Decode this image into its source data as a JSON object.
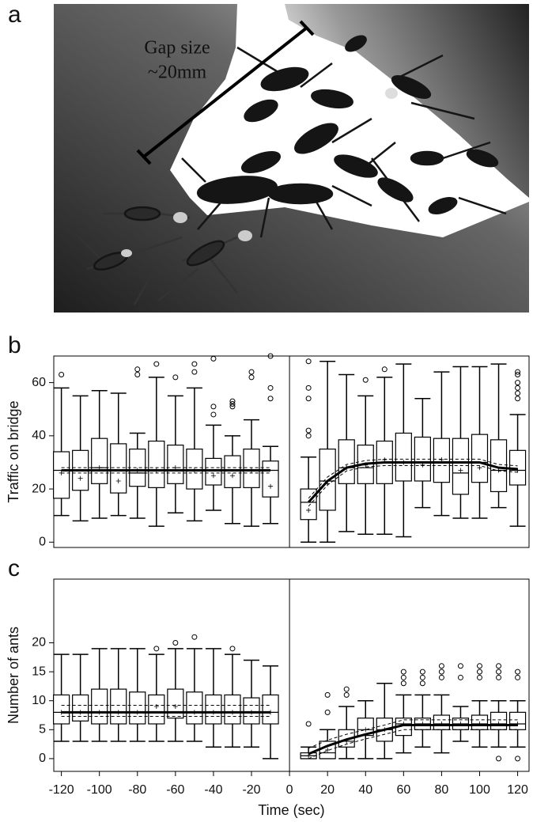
{
  "panel_a": {
    "label": "a",
    "annotation": [
      "Gap size",
      "~20mm"
    ]
  },
  "chart_data": [
    {
      "type": "box",
      "panel": "b",
      "y_label": "Traffic on bridge",
      "xlim": [
        -124,
        126
      ],
      "ylim": [
        -2,
        70
      ],
      "yticks": [
        0,
        20,
        40,
        60
      ],
      "divider": 0,
      "boxes": [
        {
          "x": -120,
          "whisker_low": 10,
          "q1": 16.5,
          "median": 27,
          "q3": 34,
          "whisker_high": 58,
          "mean": 26,
          "outliers": [
            63
          ]
        },
        {
          "x": -110,
          "whisker_low": 8,
          "q1": 19.5,
          "median": 27,
          "q3": 34.5,
          "whisker_high": 55,
          "mean": 24,
          "outliers": []
        },
        {
          "x": -100,
          "whisker_low": 9,
          "q1": 22,
          "median": 28,
          "q3": 39,
          "whisker_high": 57,
          "mean": 28,
          "outliers": []
        },
        {
          "x": -90,
          "whisker_low": 10,
          "q1": 18.5,
          "median": 27,
          "q3": 37,
          "whisker_high": 56,
          "mean": 23,
          "outliers": []
        },
        {
          "x": -80,
          "whisker_low": 9,
          "q1": 21,
          "median": 26,
          "q3": 35,
          "whisker_high": 41,
          "mean": 27,
          "outliers": [
            63,
            65
          ]
        },
        {
          "x": -70,
          "whisker_low": 6,
          "q1": 20.5,
          "median": 27,
          "q3": 38,
          "whisker_high": 62,
          "mean": 27,
          "outliers": [
            67
          ]
        },
        {
          "x": -60,
          "whisker_low": 11,
          "q1": 22,
          "median": 27,
          "q3": 36.5,
          "whisker_high": 55,
          "mean": 28,
          "outliers": [
            62
          ]
        },
        {
          "x": -50,
          "whisker_low": 8,
          "q1": 20,
          "median": 27,
          "q3": 35,
          "whisker_high": 58,
          "mean": 27,
          "outliers": [
            64,
            67
          ]
        },
        {
          "x": -40,
          "whisker_low": 12,
          "q1": 21.5,
          "median": 27,
          "q3": 31.5,
          "whisker_high": 44,
          "mean": 25,
          "outliers": [
            48,
            51,
            69
          ]
        },
        {
          "x": -30,
          "whisker_low": 7,
          "q1": 20.5,
          "median": 27,
          "q3": 32.5,
          "whisker_high": 40,
          "mean": 25,
          "outliers": [
            51,
            52,
            53
          ]
        },
        {
          "x": -20,
          "whisker_low": 6,
          "q1": 20.5,
          "median": 27,
          "q3": 35,
          "whisker_high": 46,
          "mean": 27,
          "outliers": [
            62,
            64
          ]
        },
        {
          "x": -10,
          "whisker_low": 7,
          "q1": 17,
          "median": 27,
          "q3": 30.5,
          "whisker_high": 36,
          "mean": 21,
          "outliers": [
            54,
            58,
            70
          ]
        },
        {
          "x": 10,
          "whisker_low": 0,
          "q1": 8.5,
          "median": 15,
          "q3": 20,
          "whisker_high": 32,
          "mean": 12,
          "outliers": [
            40,
            42,
            54,
            58,
            68
          ]
        },
        {
          "x": 20,
          "whisker_low": 0,
          "q1": 12,
          "median": 23,
          "q3": 35,
          "whisker_high": 68,
          "mean": 22,
          "outliers": []
        },
        {
          "x": 30,
          "whisker_low": 4,
          "q1": 22,
          "median": 28,
          "q3": 38.5,
          "whisker_high": 63,
          "mean": 28,
          "outliers": []
        },
        {
          "x": 40,
          "whisker_low": 3,
          "q1": 22,
          "median": 28,
          "q3": 36.5,
          "whisker_high": 55,
          "mean": 29,
          "outliers": [
            61
          ]
        },
        {
          "x": 50,
          "whisker_low": 3,
          "q1": 22,
          "median": 30,
          "q3": 38,
          "whisker_high": 62,
          "mean": 31,
          "outliers": [
            65
          ]
        },
        {
          "x": 60,
          "whisker_low": 2,
          "q1": 23,
          "median": 30,
          "q3": 41,
          "whisker_high": 67,
          "mean": 30,
          "outliers": []
        },
        {
          "x": 70,
          "whisker_low": 13,
          "q1": 23,
          "median": 30,
          "q3": 39.5,
          "whisker_high": 54,
          "mean": 29,
          "outliers": []
        },
        {
          "x": 80,
          "whisker_low": 10,
          "q1": 22.5,
          "median": 30,
          "q3": 39,
          "whisker_high": 64,
          "mean": 31,
          "outliers": []
        },
        {
          "x": 90,
          "whisker_low": 9,
          "q1": 18,
          "median": 26,
          "q3": 39,
          "whisker_high": 66,
          "mean": 27,
          "outliers": []
        },
        {
          "x": 100,
          "whisker_low": 9,
          "q1": 22.5,
          "median": 30,
          "q3": 40.5,
          "whisker_high": 66,
          "mean": 28,
          "outliers": []
        },
        {
          "x": 110,
          "whisker_low": 13,
          "q1": 19,
          "median": 27,
          "q3": 38.5,
          "whisker_high": 67,
          "mean": 27,
          "outliers": []
        },
        {
          "x": 120,
          "whisker_low": 6,
          "q1": 21.5,
          "median": 27,
          "q3": 34.5,
          "whisker_high": 48,
          "mean": 27,
          "outliers": [
            54,
            56,
            58,
            60,
            63,
            64
          ]
        }
      ],
      "fit": {
        "x": [
          -120,
          -10,
          0,
          10,
          20,
          30,
          40,
          50,
          60,
          70,
          80,
          90,
          100,
          110,
          120
        ],
        "center": [
          27,
          27,
          null,
          15,
          23,
          28,
          29.5,
          30,
          30,
          30,
          30,
          30,
          30,
          28,
          27.5
        ],
        "lower": [
          26,
          26,
          null,
          13.5,
          21.5,
          26.8,
          28.3,
          28.8,
          28.8,
          28.8,
          28.8,
          28.8,
          28.8,
          26.8,
          26.3
        ],
        "upper": [
          28,
          28,
          null,
          16.5,
          24.5,
          29.2,
          30.7,
          31.2,
          31.2,
          31.2,
          31.2,
          31.2,
          31.2,
          29.2,
          28.7
        ]
      }
    },
    {
      "type": "box",
      "panel": "c",
      "y_label": "Number of ants",
      "x_label": "Time (sec)",
      "xlim": [
        -124,
        126
      ],
      "ylim": [
        -2.2,
        31
      ],
      "yticks": [
        0,
        5,
        10,
        15,
        20
      ],
      "xticks": [
        -120,
        -100,
        -80,
        -60,
        -40,
        -20,
        0,
        20,
        40,
        60,
        80,
        100,
        120
      ],
      "divider": 0,
      "boxes": [
        {
          "x": -120,
          "whisker_low": 3,
          "q1": 6,
          "median": 8,
          "q3": 11,
          "whisker_high": 18,
          "mean": 8,
          "outliers": []
        },
        {
          "x": -110,
          "whisker_low": 3,
          "q1": 6.5,
          "median": 8,
          "q3": 11,
          "whisker_high": 18,
          "mean": 8,
          "outliers": []
        },
        {
          "x": -100,
          "whisker_low": 3,
          "q1": 6,
          "median": 8,
          "q3": 12,
          "whisker_high": 19,
          "mean": 8,
          "outliers": []
        },
        {
          "x": -90,
          "whisker_low": 3,
          "q1": 6,
          "median": 8,
          "q3": 12,
          "whisker_high": 19,
          "mean": 8,
          "outliers": []
        },
        {
          "x": -80,
          "whisker_low": 3,
          "q1": 6,
          "median": 8,
          "q3": 11.5,
          "whisker_high": 19,
          "mean": 8,
          "outliers": []
        },
        {
          "x": -70,
          "whisker_low": 3,
          "q1": 6,
          "median": 8,
          "q3": 11,
          "whisker_high": 18,
          "mean": 9,
          "outliers": [
            19
          ]
        },
        {
          "x": -60,
          "whisker_low": 3,
          "q1": 7,
          "median": 8,
          "q3": 12,
          "whisker_high": 19,
          "mean": 9,
          "outliers": [
            20
          ]
        },
        {
          "x": -50,
          "whisker_low": 3,
          "q1": 6,
          "median": 8,
          "q3": 11.5,
          "whisker_high": 19,
          "mean": 8,
          "outliers": [
            21
          ]
        },
        {
          "x": -40,
          "whisker_low": 2,
          "q1": 6,
          "median": 8,
          "q3": 11,
          "whisker_high": 19,
          "mean": 8,
          "outliers": []
        },
        {
          "x": -30,
          "whisker_low": 2,
          "q1": 6,
          "median": 8,
          "q3": 11,
          "whisker_high": 18,
          "mean": 8,
          "outliers": [
            19
          ]
        },
        {
          "x": -20,
          "whisker_low": 2,
          "q1": 6,
          "median": 8,
          "q3": 10.5,
          "whisker_high": 17,
          "mean": 8,
          "outliers": []
        },
        {
          "x": -10,
          "whisker_low": 0,
          "q1": 6,
          "median": 8,
          "q3": 11,
          "whisker_high": 16,
          "mean": 8,
          "outliers": []
        },
        {
          "x": 10,
          "whisker_low": 0,
          "q1": 0,
          "median": 0.5,
          "q3": 1,
          "whisker_high": 2,
          "mean": 0.5,
          "outliers": [
            6
          ]
        },
        {
          "x": 20,
          "whisker_low": 0,
          "q1": 0,
          "median": 1,
          "q3": 3,
          "whisker_high": 5,
          "mean": 1.5,
          "outliers": [
            8,
            11
          ]
        },
        {
          "x": 30,
          "whisker_low": 0,
          "q1": 2,
          "median": 3,
          "q3": 5,
          "whisker_high": 9,
          "mean": 3,
          "outliers": [
            11,
            12
          ]
        },
        {
          "x": 40,
          "whisker_low": 0,
          "q1": 4,
          "median": 5,
          "q3": 7,
          "whisker_high": 10,
          "mean": 5,
          "outliers": []
        },
        {
          "x": 50,
          "whisker_low": 0,
          "q1": 3,
          "median": 5,
          "q3": 7,
          "whisker_high": 13,
          "mean": 5,
          "outliers": []
        },
        {
          "x": 60,
          "whisker_low": 1,
          "q1": 4,
          "median": 6,
          "q3": 7,
          "whisker_high": 11,
          "mean": 6,
          "outliers": [
            13,
            14,
            15
          ]
        },
        {
          "x": 70,
          "whisker_low": 2,
          "q1": 5,
          "median": 6,
          "q3": 7,
          "whisker_high": 11,
          "mean": 6,
          "outliers": [
            13,
            14,
            15
          ]
        },
        {
          "x": 80,
          "whisker_low": 1,
          "q1": 5,
          "median": 6,
          "q3": 7.5,
          "whisker_high": 11,
          "mean": 6,
          "outliers": [
            14,
            15,
            16
          ]
        },
        {
          "x": 90,
          "whisker_low": 3,
          "q1": 5,
          "median": 6,
          "q3": 7,
          "whisker_high": 9,
          "mean": 6,
          "outliers": [
            14,
            16
          ]
        },
        {
          "x": 100,
          "whisker_low": 2,
          "q1": 5,
          "median": 6,
          "q3": 7.5,
          "whisker_high": 10,
          "mean": 6,
          "outliers": [
            14,
            15,
            16
          ]
        },
        {
          "x": 110,
          "whisker_low": 2,
          "q1": 5,
          "median": 6,
          "q3": 8,
          "whisker_high": 10,
          "mean": 6,
          "outliers": [
            0,
            14,
            15,
            16
          ]
        },
        {
          "x": 120,
          "whisker_low": 2,
          "q1": 5,
          "median": 6,
          "q3": 8,
          "whisker_high": 10,
          "mean": 6,
          "outliers": [
            0,
            14,
            15
          ]
        }
      ],
      "fit": {
        "x": [
          -120,
          -10,
          0,
          10,
          20,
          30,
          40,
          50,
          60,
          70,
          80,
          90,
          100,
          110,
          120
        ],
        "center": [
          8,
          8,
          null,
          0.8,
          2.2,
          3.3,
          4.2,
          5,
          5.8,
          5.8,
          5.8,
          5.8,
          5.8,
          5.8,
          5.8
        ],
        "lower": [
          7.3,
          7.3,
          null,
          0,
          1.4,
          2.5,
          3.4,
          4.2,
          5,
          5,
          5,
          5,
          5,
          5,
          5
        ],
        "upper": [
          9.2,
          9.2,
          null,
          1.8,
          3.2,
          4.2,
          5,
          5.8,
          6.7,
          6.7,
          6.7,
          6.7,
          6.7,
          6.7,
          6.7
        ]
      }
    }
  ]
}
